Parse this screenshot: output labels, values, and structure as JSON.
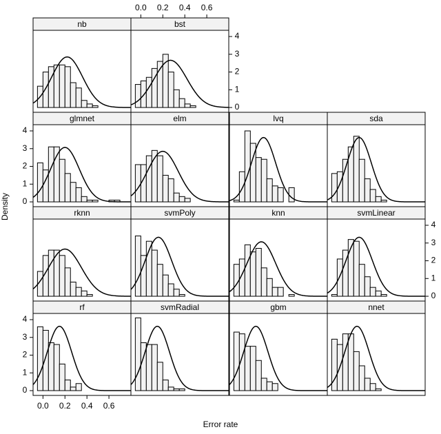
{
  "chart_data": {
    "type": "histogram",
    "xlabel": "Error rate",
    "ylabel": "Density",
    "xlim": [
      -0.09,
      0.8
    ],
    "ylim": [
      -0.27,
      4.35
    ],
    "xticks": [
      {
        "value": 0,
        "label": "0.0"
      },
      0.2,
      0.4,
      0.6
    ],
    "yticks": [
      0,
      1,
      2,
      3,
      4
    ],
    "bins": [
      -0.05,
      0,
      0.05,
      0.1,
      0.15,
      0.2,
      0.25,
      0.3,
      0.35,
      0.4,
      0.45,
      0.5,
      0.55,
      0.6,
      0.65,
      0.7,
      0.75
    ],
    "panels": [
      {
        "name": "nb",
        "values": [
          1.2,
          2.0,
          2.3,
          2.4,
          2.4,
          2.3,
          1.4,
          1.1,
          0.4,
          0.2,
          0.1,
          0,
          0,
          0,
          0,
          0
        ],
        "mean": 0.22,
        "sd": 0.14
      },
      {
        "name": "bst",
        "values": [
          1.3,
          1.5,
          1.7,
          2.2,
          2.6,
          3.0,
          2.0,
          1.0,
          0.5,
          0.2,
          0.1,
          0,
          0,
          0,
          0,
          0
        ],
        "mean": 0.27,
        "sd": 0.15
      },
      {
        "name": "glmnet",
        "values": [
          2.2,
          1.8,
          3.1,
          3.1,
          2.4,
          1.6,
          1.1,
          0.8,
          0.3,
          0.1,
          0.1,
          0,
          0,
          0.1,
          0.1,
          0
        ],
        "mean": 0.2,
        "sd": 0.13
      },
      {
        "name": "elm",
        "values": [
          2.1,
          2.1,
          2.6,
          2.9,
          2.6,
          1.5,
          1.3,
          0.5,
          0.3,
          0.2,
          0,
          0,
          0,
          0,
          0,
          0
        ],
        "mean": 0.2,
        "sd": 0.14
      },
      {
        "name": "lvq",
        "values": [
          0.1,
          1.7,
          4.0,
          3.3,
          2.5,
          2.4,
          1.3,
          0.9,
          0.8,
          0,
          0.8,
          0,
          0,
          0,
          0,
          0
        ],
        "mean": 0.22,
        "sd": 0.11
      },
      {
        "name": "sda",
        "values": [
          1.6,
          1.7,
          2.4,
          3.1,
          3.7,
          2.4,
          1.3,
          0.7,
          0.3,
          0.1,
          0,
          0,
          0,
          0,
          0,
          0
        ],
        "mean": 0.2,
        "sd": 0.11
      },
      {
        "name": "rknn",
        "values": [
          1.4,
          2.3,
          2.6,
          2.6,
          2.3,
          1.6,
          0.8,
          0.5,
          0.3,
          0.1,
          0,
          0,
          0,
          0,
          0,
          0
        ],
        "mean": 0.2,
        "sd": 0.15
      },
      {
        "name": "svmPoly",
        "values": [
          3.4,
          2.3,
          3.1,
          2.6,
          1.8,
          1.2,
          0.7,
          0.4,
          0.1,
          0,
          0,
          0,
          0,
          0,
          0,
          0
        ],
        "mean": 0.16,
        "sd": 0.12
      },
      {
        "name": "knn",
        "values": [
          1.8,
          2.1,
          2.9,
          2.5,
          2.7,
          1.6,
          1.0,
          0.5,
          0.5,
          0,
          0.1,
          0,
          0,
          0,
          0,
          0
        ],
        "mean": 0.2,
        "sd": 0.13
      },
      {
        "name": "svmLinear",
        "values": [
          0.1,
          2.1,
          2.6,
          3.2,
          3.1,
          1.8,
          1.1,
          0.5,
          0.3,
          0.1,
          0,
          0,
          0,
          0,
          0,
          0
        ],
        "mean": 0.2,
        "sd": 0.12
      },
      {
        "name": "rf",
        "values": [
          3.6,
          3.4,
          2.7,
          2.6,
          1.5,
          0.6,
          0.2,
          0.4,
          0,
          0,
          0,
          0,
          0,
          0,
          0,
          0
        ],
        "mean": 0.15,
        "sd": 0.11
      },
      {
        "name": "svmRadial",
        "values": [
          4.1,
          2.7,
          2.6,
          2.6,
          1.6,
          0.6,
          0.2,
          0.1,
          0.1,
          0,
          0,
          0,
          0,
          0,
          0,
          0
        ],
        "mean": 0.15,
        "sd": 0.11
      },
      {
        "name": "gbm",
        "values": [
          3.3,
          3.2,
          2.5,
          2.5,
          1.7,
          0.7,
          0.5,
          0.4,
          0,
          0,
          0,
          0,
          0,
          0,
          0,
          0
        ],
        "mean": 0.15,
        "sd": 0.11
      },
      {
        "name": "nnet",
        "values": [
          2.9,
          2.6,
          3.2,
          3.2,
          2.2,
          1.4,
          0.7,
          0.4,
          0.1,
          0,
          0,
          0,
          0,
          0,
          0,
          0
        ],
        "mean": 0.18,
        "sd": 0.11
      }
    ]
  }
}
